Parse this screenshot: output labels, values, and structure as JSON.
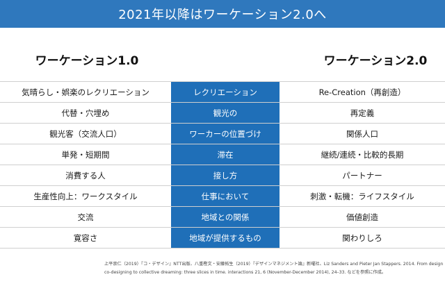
{
  "title": "2021年以降はワーケーション2.0へ",
  "left_heading": "ワーケーション1.0",
  "right_heading": "ワーケーション2.0",
  "colors": {
    "title_bar": "#2f78bd",
    "middle_column": "#1f6fb8",
    "divider": "#cfcfcf"
  },
  "rows": [
    {
      "left": "気晴らし・娯楽のレクリエーション",
      "middle": "レクリエーション",
      "right": "Re-Creation（再創造）"
    },
    {
      "left": "代替・穴埋め",
      "middle": "観光の",
      "right": "再定義"
    },
    {
      "left": "観光客（交流人口）",
      "middle": "ワーカーの位置づけ",
      "right": "関係人口"
    },
    {
      "left": "単発・短期間",
      "middle": "滞在",
      "right": "継続/連続・比較的長期"
    },
    {
      "left": "消費する人",
      "middle": "接し方",
      "right": "パートナー"
    },
    {
      "left": "生産性向上：ワークスタイル",
      "middle": "仕事において",
      "right": "刺激・転機：ライフスタイル"
    },
    {
      "left": "交流",
      "middle": "地域との関係",
      "right": "価値創造"
    },
    {
      "left": "寛容さ",
      "middle": "地域が提供するもの",
      "right": "関わりしろ"
    }
  ],
  "footnote": {
    "line1": "上平崇仁（2019）『コ・デザイン』NTT出版、八重樫文・安藤拓生（2019）『デザインマネジメント論』新曜社、Liz Sanders and Pieter Jan Stappers. 2014. From design",
    "line2": "co-designing to collective dreaming: three slices in time. interactions 21, 6 (November-December 2014), 24–33. などを参照に作成。"
  }
}
